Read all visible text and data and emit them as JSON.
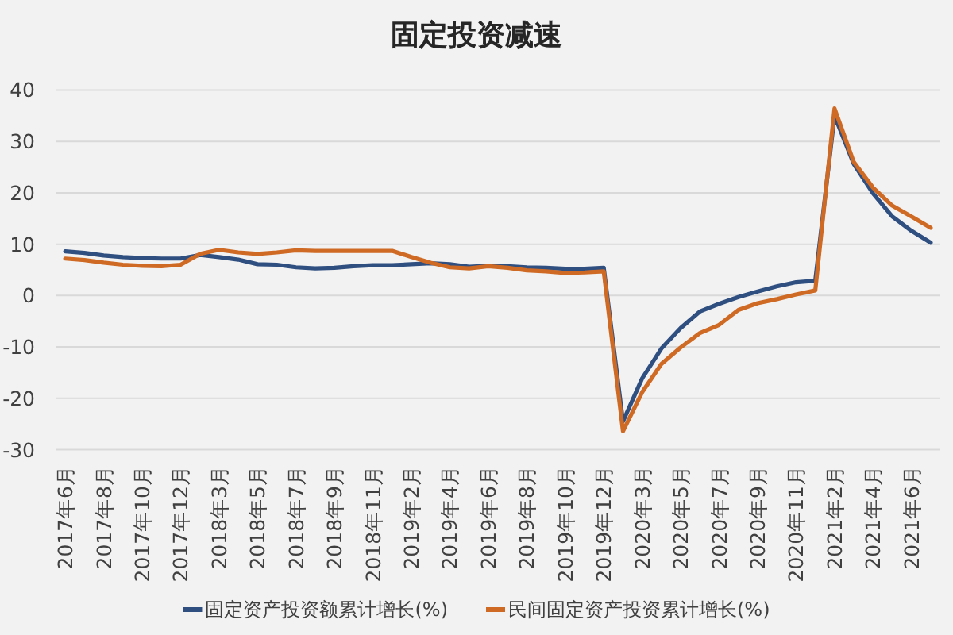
{
  "chart_data": {
    "type": "line",
    "title": "固定投资减速",
    "categories": [
      "2017年6月",
      null,
      "2017年8月",
      null,
      "2017年10月",
      null,
      "2017年12月",
      null,
      "2018年3月",
      null,
      "2018年5月",
      null,
      "2018年7月",
      null,
      "2018年9月",
      null,
      "2018年11月",
      null,
      "2019年2月",
      null,
      "2019年4月",
      null,
      "2019年6月",
      null,
      "2019年8月",
      null,
      "2019年10月",
      null,
      "2019年12月",
      null,
      "2020年3月",
      null,
      "2020年5月",
      null,
      "2020年7月",
      null,
      "2020年9月",
      null,
      "2020年11月",
      null,
      "2021年2月",
      null,
      "2021年4月",
      null,
      "2021年6月",
      null
    ],
    "series": [
      {
        "name": "固定资产投资额累计增长(%)",
        "color": "#2f4f80",
        "values": [
          8.6,
          8.3,
          7.8,
          7.5,
          7.3,
          7.2,
          7.2,
          7.9,
          7.5,
          7.0,
          6.1,
          6.0,
          5.5,
          5.3,
          5.4,
          5.7,
          5.9,
          5.9,
          6.1,
          6.3,
          6.1,
          5.6,
          5.8,
          5.7,
          5.5,
          5.4,
          5.2,
          5.2,
          5.4,
          -24.5,
          -16.1,
          -10.3,
          -6.3,
          -3.1,
          -1.6,
          -0.3,
          0.8,
          1.8,
          2.6,
          2.9,
          35.0,
          25.6,
          19.9,
          15.4,
          12.6,
          10.3
        ]
      },
      {
        "name": "民间固定资产投资累计增长(%)",
        "color": "#cf6a25",
        "values": [
          7.2,
          6.9,
          6.4,
          6.0,
          5.8,
          5.7,
          6.0,
          8.1,
          8.9,
          8.4,
          8.1,
          8.4,
          8.8,
          8.7,
          8.7,
          8.7,
          8.7,
          8.7,
          7.5,
          6.4,
          5.5,
          5.3,
          5.7,
          5.4,
          4.9,
          4.7,
          4.4,
          4.5,
          4.7,
          -26.4,
          -18.8,
          -13.3,
          -10.1,
          -7.3,
          -5.7,
          -2.8,
          -1.5,
          -0.7,
          0.2,
          1.0,
          36.4,
          26.0,
          21.0,
          17.5,
          15.4,
          13.2
        ]
      }
    ],
    "ylim": [
      -30,
      40
    ],
    "yticks": [
      -30,
      -20,
      -10,
      0,
      10,
      20,
      30,
      40
    ],
    "grid": "y",
    "legend": "bottom"
  }
}
